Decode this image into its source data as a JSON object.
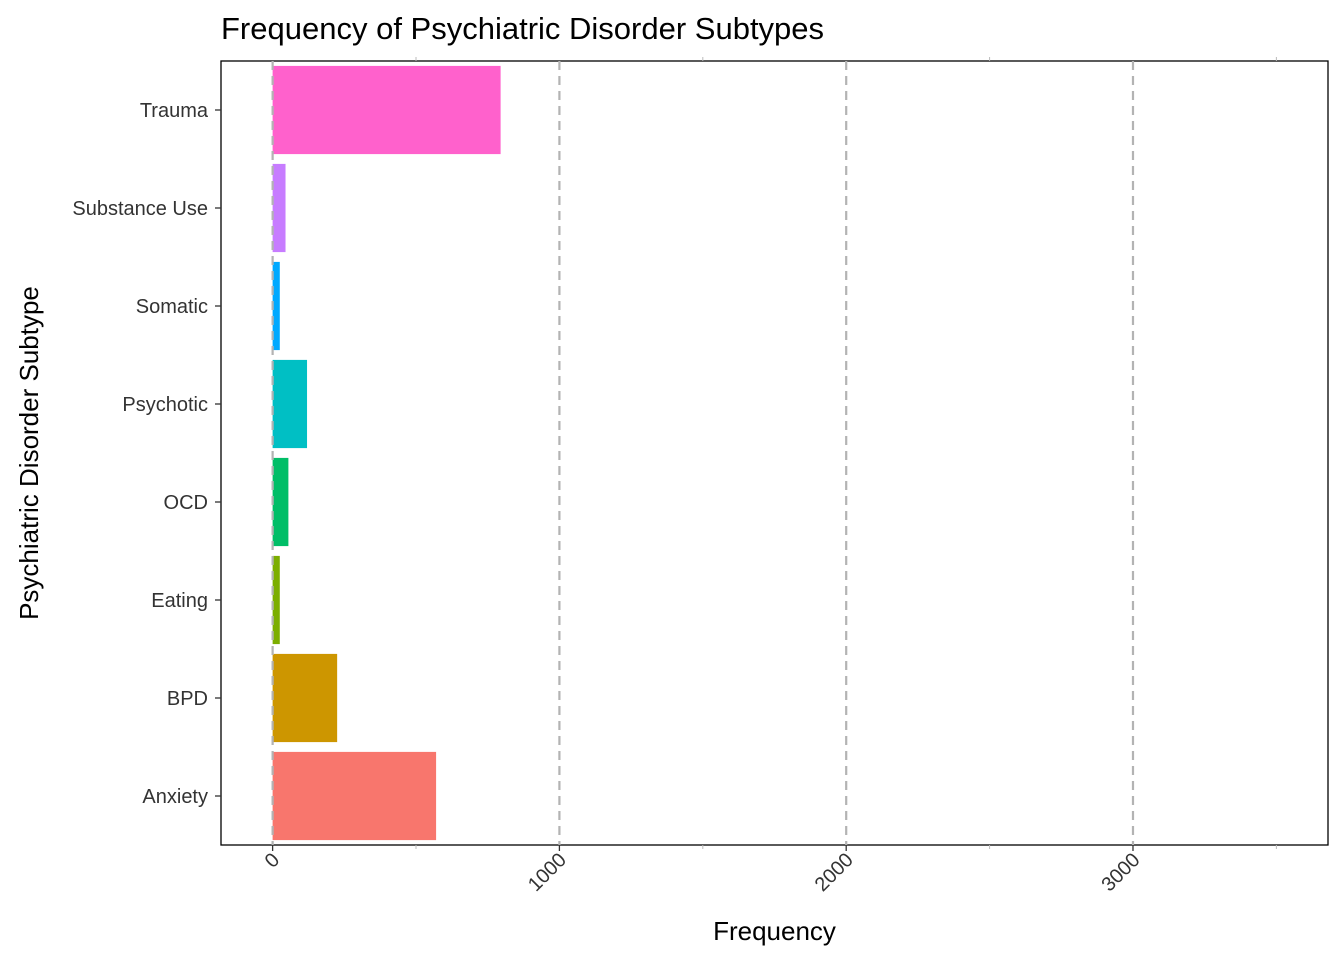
{
  "chart_data": {
    "type": "bar",
    "orientation": "horizontal",
    "title": "Frequency of Psychiatric Disorder Subtypes",
    "xlabel": "Frequency",
    "ylabel": "Psychiatric Disorder Subtype",
    "xlim": [
      -180,
      3680
    ],
    "xticks": [
      0,
      1000,
      2000,
      3000
    ],
    "tick_label_rotation": 45,
    "grid": "vertical dashed gridlines at major ticks",
    "legend": "none",
    "categories": [
      "Anxiety",
      "BPD",
      "Eating",
      "OCD",
      "Psychotic",
      "Somatic",
      "Substance Use",
      "Trauma"
    ],
    "values": [
      570,
      225,
      25,
      55,
      120,
      25,
      45,
      795
    ],
    "colors": [
      "#F8766D",
      "#CD9600",
      "#7CAE00",
      "#00BE67",
      "#00BFC4",
      "#00A9FF",
      "#C77CFF",
      "#FF61CC"
    ],
    "grid_color": "#b3b3b3"
  }
}
